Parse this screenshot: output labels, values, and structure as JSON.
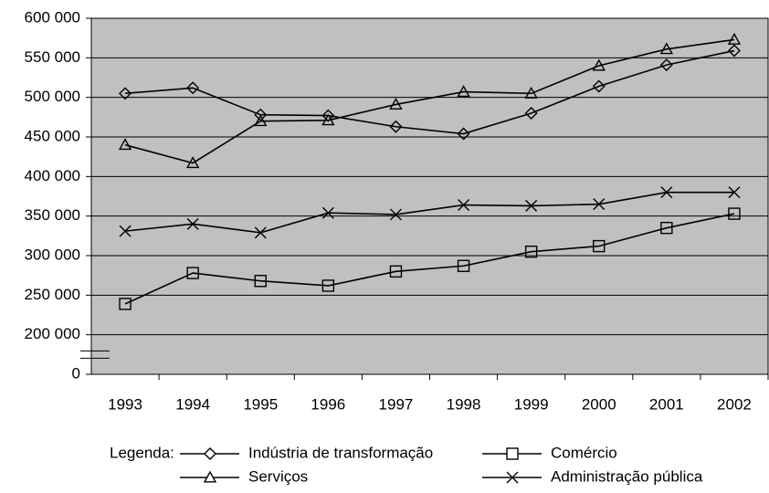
{
  "chart_data": {
    "type": "line",
    "categories": [
      "1993",
      "1994",
      "1995",
      "1996",
      "1997",
      "1998",
      "1999",
      "2000",
      "2001",
      "2002"
    ],
    "series": [
      {
        "name": "Indústria de transformação",
        "color": "#000000",
        "marker": "diamond",
        "values": [
          505000,
          512000,
          478000,
          477000,
          463000,
          454000,
          480000,
          514000,
          541000,
          559000
        ]
      },
      {
        "name": "Comércio",
        "color": "#000000",
        "marker": "square",
        "values": [
          239000,
          278000,
          268000,
          262000,
          280000,
          287000,
          305000,
          312000,
          335000,
          353000
        ]
      },
      {
        "name": "Serviços",
        "color": "#000000",
        "marker": "triangle",
        "values": [
          440000,
          417000,
          470000,
          471000,
          491000,
          507000,
          505000,
          540000,
          561000,
          573000
        ]
      },
      {
        "name": "Administração pública",
        "color": "#000000",
        "marker": "x",
        "values": [
          331000,
          340000,
          329000,
          354000,
          352000,
          364000,
          363000,
          365000,
          380000,
          380000
        ]
      }
    ],
    "ylim": [
      0,
      600000
    ],
    "axis_break": [
      0,
      200000
    ],
    "yticks": [
      0,
      {
        "value": 200000,
        "label": "200 000"
      },
      {
        "value": 250000,
        "label": "250 000"
      },
      {
        "value": 300000,
        "label": "300 000"
      },
      {
        "value": 350000,
        "label": "350 000"
      },
      {
        "value": 400000,
        "label": "400 000"
      },
      {
        "value": 450000,
        "label": "450 000"
      },
      {
        "value": 500000,
        "label": "500 000"
      },
      {
        "value": 550000,
        "label": "550 000"
      },
      {
        "value": {
          "value": 600000,
          "label": "600 000"
        },
        "label": "600 000"
      }
    ],
    "grid": true,
    "plot_background": "#c0c0c0",
    "legend_title": "Legenda:"
  }
}
